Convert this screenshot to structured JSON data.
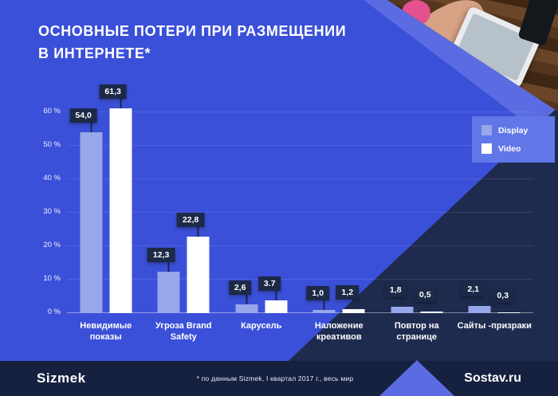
{
  "title": {
    "line1": "ОСНОВНЫЕ ПОТЕРИ ПРИ РАЗМЕЩЕНИИ",
    "line2": "В ИНТЕРНЕТЕ*"
  },
  "legend": [
    {
      "label": "Display",
      "color": "#96a7ea"
    },
    {
      "label": "Video",
      "color": "#ffffff"
    }
  ],
  "footer": {
    "brand_left": "Sizmek",
    "note": "* по данным Sizmek, I квартал 2017 г., весь мир",
    "brand_right": "Sostav.ru"
  },
  "colors": {
    "background": "#3b50d8",
    "navy": "#1e2b4f",
    "flag": "#1c2947",
    "display_bar": "#96a7ea",
    "video_bar": "#ffffff"
  },
  "chart_data": {
    "type": "bar",
    "title": "ОСНОВНЫЕ ПОТЕРИ ПРИ РАЗМЕЩЕНИИ В ИНТЕРНЕТЕ*",
    "categories": [
      "Невидимые показы",
      "Угроза Brand Safety",
      "Карусель",
      "Наложение креативов",
      "Повтор на странице",
      "Сайты -призраки"
    ],
    "series": [
      {
        "name": "Display",
        "color": "#96a7ea",
        "values": [
          54.0,
          12.3,
          2.6,
          1.0,
          1.8,
          2.1
        ],
        "labels": [
          "54,0",
          "12,3",
          "2,6",
          "1,0",
          "1,8",
          "2,1"
        ]
      },
      {
        "name": "Video",
        "color": "#ffffff",
        "values": [
          61.3,
          22.8,
          3.7,
          1.2,
          0.5,
          0.3
        ],
        "labels": [
          "61,3",
          "22,8",
          "3.7",
          "1,2",
          "0,5",
          "0,3"
        ]
      }
    ],
    "xlabel": "",
    "ylabel": "",
    "ylim": [
      0,
      65
    ],
    "ytick_step": 10,
    "yticks": [
      "0 %",
      "10 %",
      "20 %",
      "30 %",
      "40 %",
      "50 %",
      "60 %"
    ],
    "grid": "subtle-horizontal",
    "legend_position": "right"
  }
}
